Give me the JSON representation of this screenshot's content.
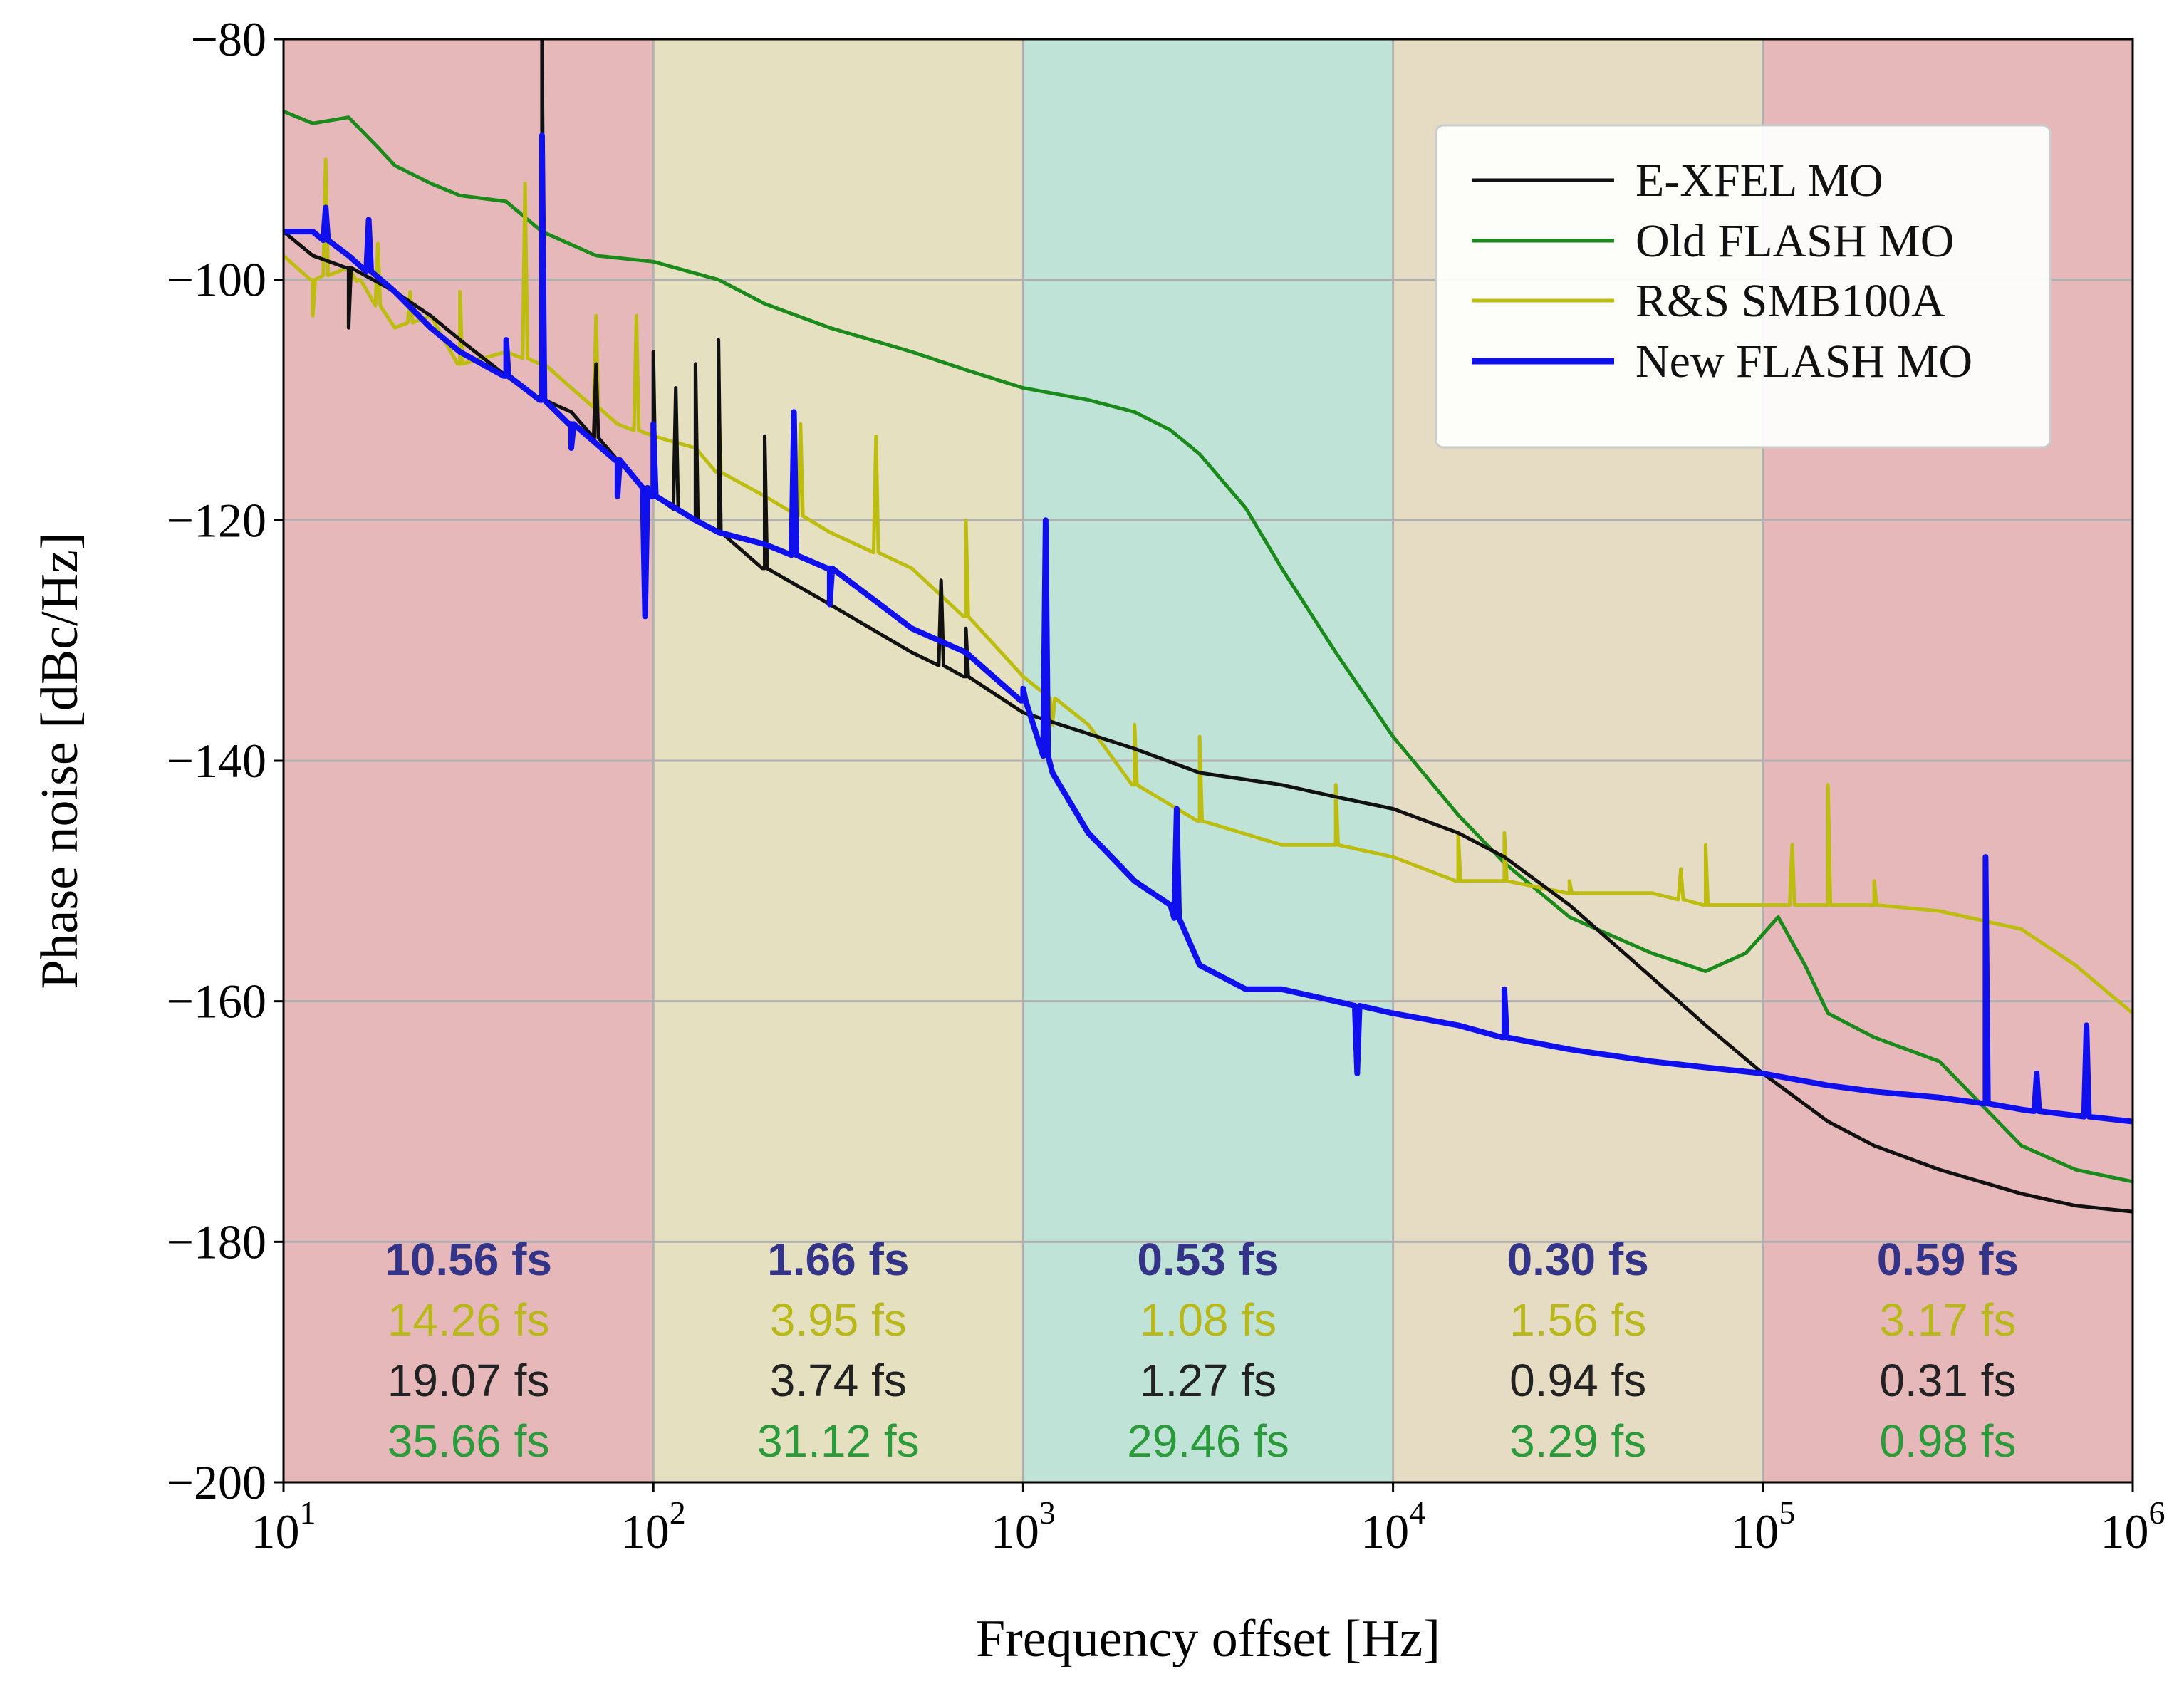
{
  "chart_data": {
    "type": "line",
    "xscale": "log",
    "xlabel": "Frequency offset [Hz]",
    "ylabel": "Phase noise [dBc/Hz]",
    "xlim": [
      10,
      1000000
    ],
    "ylim": [
      -200,
      -80
    ],
    "grid": true,
    "legend_position": "top-right",
    "x_ticks": [
      {
        "base": "10",
        "exp": "1"
      },
      {
        "base": "10",
        "exp": "2"
      },
      {
        "base": "10",
        "exp": "3"
      },
      {
        "base": "10",
        "exp": "4"
      },
      {
        "base": "10",
        "exp": "5"
      },
      {
        "base": "10",
        "exp": "6"
      }
    ],
    "y_ticks": [
      "−80",
      "−100",
      "−120",
      "−140",
      "−160",
      "−180",
      "−200"
    ],
    "y_tick_values": [
      -80,
      -100,
      -120,
      -140,
      -160,
      -180,
      -200
    ],
    "bands": [
      {
        "from": 10,
        "to": 100,
        "color": "#e6b8b9"
      },
      {
        "from": 100,
        "to": 1000,
        "color": "#e4e0c0"
      },
      {
        "from": 1000,
        "to": 10000,
        "color": "#bfe3d6"
      },
      {
        "from": 10000,
        "to": 100000,
        "color": "#e6dcc3"
      },
      {
        "from": 100000,
        "to": 1000000,
        "color": "#e6b8b9"
      }
    ],
    "jitter_colors": [
      "#333388",
      "#b8b81a",
      "#222222",
      "#2a9a3a"
    ],
    "jitter": [
      [
        "10.56 fs",
        "14.26 fs",
        "19.07 fs",
        "35.66 fs"
      ],
      [
        "1.66 fs",
        "3.95 fs",
        "3.74 fs",
        "31.12 fs"
      ],
      [
        "0.53 fs",
        "1.08 fs",
        "1.27 fs",
        "29.46 fs"
      ],
      [
        "0.30 fs",
        "1.56 fs",
        "0.94 fs",
        "3.29 fs"
      ],
      [
        "0.59 fs",
        "3.17 fs",
        "0.31 fs",
        "0.98 fs"
      ]
    ],
    "series": [
      {
        "name": "E-XFEL MO",
        "color": "#111111",
        "x": [
          10,
          12,
          15,
          20,
          25,
          30,
          40,
          50,
          60,
          80,
          100,
          130,
          150,
          200,
          300,
          500,
          700,
          1000,
          2000,
          3000,
          5000,
          7000,
          10000,
          15000,
          20000,
          30000,
          50000,
          70000,
          100000,
          150000,
          200000,
          300000,
          500000,
          700000,
          1000000
        ],
        "y": [
          -96,
          -98,
          -99,
          -101,
          -103,
          -105,
          -108,
          -110,
          -111,
          -115,
          -118,
          -120,
          -121,
          -124,
          -127,
          -131,
          -133,
          -136,
          -139,
          -141,
          -142,
          -143,
          -144,
          -146,
          -148,
          -152,
          -158,
          -162,
          -166,
          -170,
          -172,
          -174,
          -176,
          -177,
          -177.5
        ],
        "spikes": [
          [
            15,
            -104
          ],
          [
            50,
            -80
          ],
          [
            70,
            -107
          ],
          [
            100,
            -106
          ],
          [
            115,
            -109
          ],
          [
            130,
            -107
          ],
          [
            150,
            -105
          ],
          [
            200,
            -113
          ],
          [
            600,
            -125
          ],
          [
            700,
            -129
          ]
        ]
      },
      {
        "name": "Old FLASH MO",
        "color": "#1a8a1a",
        "x": [
          10,
          12,
          15,
          18,
          20,
          25,
          30,
          40,
          50,
          70,
          100,
          150,
          200,
          300,
          500,
          700,
          1000,
          1500,
          2000,
          2500,
          3000,
          4000,
          5000,
          7000,
          10000,
          15000,
          20000,
          30000,
          50000,
          70000,
          90000,
          110000,
          130000,
          150000,
          200000,
          300000,
          500000,
          700000,
          1000000
        ],
        "y": [
          -86,
          -87,
          -86.5,
          -89,
          -90.5,
          -92,
          -93,
          -93.5,
          -96,
          -98,
          -98.5,
          -100,
          -102,
          -104,
          -106,
          -107.5,
          -109,
          -110,
          -111,
          -112.5,
          -114.5,
          -119,
          -124,
          -131,
          -138,
          -144.5,
          -148.5,
          -153,
          -156,
          -157.5,
          -156,
          -153,
          -157,
          -161,
          -163,
          -165,
          -172,
          -174,
          -175
        ]
      },
      {
        "name": "R&S SMB100A",
        "color": "#bdbd10",
        "x": [
          10,
          12,
          15,
          20,
          25,
          30,
          40,
          50,
          60,
          80,
          100,
          130,
          150,
          200,
          300,
          500,
          700,
          1000,
          1500,
          2000,
          3000,
          5000,
          7000,
          10000,
          15000,
          20000,
          30000,
          50000,
          70000,
          100000,
          150000,
          200000,
          300000,
          500000,
          700000,
          1000000
        ],
        "y": [
          -98,
          -100,
          -99,
          -104,
          -103,
          -107,
          -106,
          -107,
          -109,
          -112,
          -113,
          -114,
          -116,
          -118,
          -121,
          -124,
          -128,
          -133,
          -137,
          -142,
          -145,
          -147,
          -147,
          -148,
          -150,
          -150,
          -151,
          -151,
          -152,
          -152,
          -152,
          -152,
          -152.5,
          -154,
          -157,
          -161
        ],
        "spikes": [
          [
            12,
            -103
          ],
          [
            13,
            -90
          ],
          [
            16,
            -100
          ],
          [
            18,
            -97
          ],
          [
            22,
            -101
          ],
          [
            30,
            -101
          ],
          [
            45,
            -92
          ],
          [
            50,
            -88
          ],
          [
            70,
            -103
          ],
          [
            90,
            -103
          ],
          [
            150,
            -109
          ],
          [
            250,
            -112
          ],
          [
            400,
            -113
          ],
          [
            700,
            -120
          ],
          [
            1200,
            -137
          ],
          [
            2000,
            -137
          ],
          [
            3000,
            -138
          ],
          [
            7000,
            -142
          ],
          [
            15000,
            -146
          ],
          [
            20000,
            -146
          ],
          [
            30000,
            -150
          ],
          [
            60000,
            -149
          ],
          [
            70000,
            -147
          ],
          [
            120000,
            -147
          ],
          [
            150000,
            -142
          ],
          [
            200000,
            -150
          ]
        ]
      },
      {
        "name": "New FLASH MO",
        "color": "#1010ee",
        "x": [
          10,
          12,
          15,
          20,
          25,
          30,
          40,
          50,
          60,
          80,
          100,
          130,
          150,
          200,
          300,
          500,
          700,
          1000,
          1200,
          1500,
          2000,
          2500,
          3000,
          4000,
          5000,
          7000,
          10000,
          15000,
          20000,
          30000,
          50000,
          70000,
          100000,
          150000,
          200000,
          300000,
          400000,
          500000,
          700000,
          1000000
        ],
        "y": [
          -96,
          -96,
          -98,
          -101,
          -104,
          -106,
          -108,
          -110,
          -112,
          -115,
          -118,
          -120,
          -121,
          -122,
          -124,
          -129,
          -131,
          -135,
          -141,
          -146,
          -150,
          -152,
          -157,
          -159,
          -159,
          -160,
          -161,
          -162,
          -163,
          -164,
          -165,
          -165.5,
          -166,
          -167,
          -167.5,
          -168,
          -168.5,
          -169,
          -169.5,
          -170
        ],
        "spikes": [
          [
            13,
            -94
          ],
          [
            17,
            -95
          ],
          [
            40,
            -105
          ],
          [
            50,
            -88
          ],
          [
            60,
            -114
          ],
          [
            80,
            -118
          ],
          [
            95,
            -128
          ],
          [
            100,
            -112
          ],
          [
            240,
            -111
          ],
          [
            300,
            -127
          ],
          [
            1000,
            -134
          ],
          [
            1150,
            -120
          ],
          [
            2600,
            -144
          ],
          [
            8000,
            -166
          ],
          [
            20000,
            -159
          ],
          [
            400000,
            -148
          ],
          [
            550000,
            -166
          ],
          [
            750000,
            -162
          ]
        ]
      }
    ]
  }
}
